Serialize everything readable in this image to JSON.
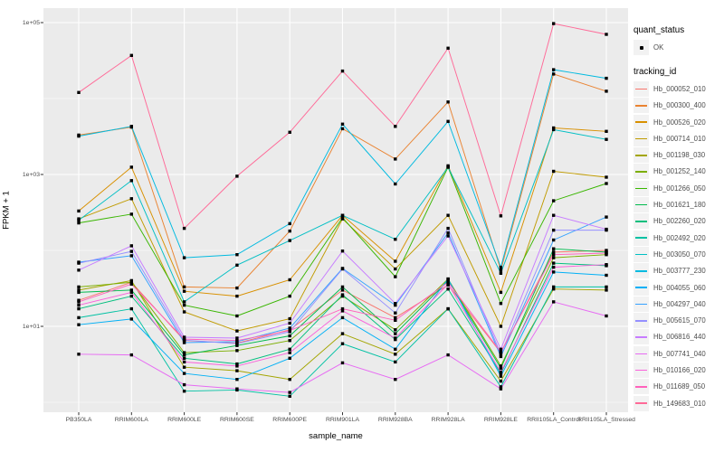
{
  "figure": {
    "panel_bg": "#EBEBEB",
    "grid_color": "#FFFFFF",
    "tick_color": "#333333",
    "point_color": "#000000",
    "y_axis_title": "FPKM + 1",
    "x_axis_title": "sample_name",
    "y_tick_labels": [
      "1e+05",
      "1e+03",
      "1e+01"
    ]
  },
  "legend": {
    "quant_status": {
      "title": "quant_status",
      "items": [
        {
          "label": "OK",
          "shape": "point"
        }
      ]
    },
    "tracking_id": {
      "title": "tracking_id"
    }
  },
  "chart_data": {
    "type": "line",
    "xlabel": "sample_name",
    "ylabel": "FPKM + 1",
    "y_scale": "log10",
    "y_major_ticks": [
      10,
      1000,
      100000
    ],
    "y_minor_ticks": [
      1,
      100,
      10000
    ],
    "grid": true,
    "legend_position": "right",
    "point_marker": "black-square",
    "categories": [
      "PB350LA",
      "RRIM600LA",
      "RRIM600LE",
      "RRIM600SE",
      "RRIM600PE",
      "RRIM901LA",
      "RRIM928BA",
      "RRIM928LA",
      "RRIM928LE",
      "RRII105LA_Control",
      "RRII105LA_Stressed"
    ],
    "series": [
      {
        "name": "Hb_000052_010",
        "color": "#F8766D",
        "values": [
          22,
          38,
          6.5,
          6.0,
          9.0,
          30,
          13,
          35,
          4.5,
          95,
          100
        ]
      },
      {
        "name": "Hb_000300_400",
        "color": "#EA8331",
        "values": [
          3300,
          4200,
          33,
          32,
          180,
          4000,
          1600,
          9000,
          55,
          21000,
          12500
        ]
      },
      {
        "name": "Hb_000526_020",
        "color": "#D89000",
        "values": [
          330,
          1250,
          29,
          25,
          41,
          290,
          72,
          1300,
          28,
          4100,
          3700
        ]
      },
      {
        "name": "Hb_000714_010",
        "color": "#C09B00",
        "values": [
          260,
          480,
          15.5,
          8.7,
          12.6,
          260,
          57,
          290,
          10,
          1100,
          920
        ]
      },
      {
        "name": "Hb_001198_030",
        "color": "#A3A500",
        "values": [
          30,
          40,
          2.9,
          2.6,
          2.0,
          8.0,
          4.3,
          17,
          1.9,
          31,
          30
        ]
      },
      {
        "name": "Hb_001252_140",
        "color": "#7CAE00",
        "values": [
          33,
          38,
          4.5,
          4.8,
          6.5,
          25,
          9.0,
          42,
          3.0,
          80,
          88
        ]
      },
      {
        "name": "Hb_001266_050",
        "color": "#39B600",
        "values": [
          230,
          300,
          19,
          13.7,
          25,
          270,
          45,
          1250,
          20,
          450,
          760
        ]
      },
      {
        "name": "Hb_001621_180",
        "color": "#00BB4E",
        "values": [
          28,
          30,
          4.2,
          5.6,
          7.5,
          33,
          8.0,
          40,
          2.8,
          105,
          95
        ]
      },
      {
        "name": "Hb_002260_020",
        "color": "#00BF7D",
        "values": [
          17,
          25,
          3.8,
          3.2,
          5.0,
          26,
          6.7,
          31,
          2.4,
          68,
          63
        ]
      },
      {
        "name": "Hb_002492_020",
        "color": "#00C1A3",
        "values": [
          13,
          17,
          1.4,
          1.45,
          1.2,
          5.9,
          3.4,
          17,
          1.6,
          33,
          33
        ]
      },
      {
        "name": "Hb_003050_070",
        "color": "#00BFC4",
        "values": [
          250,
          830,
          21,
          64,
          135,
          290,
          140,
          1250,
          50,
          3900,
          2900
        ]
      },
      {
        "name": "Hb_003777_230",
        "color": "#00BAE0",
        "values": [
          3200,
          4300,
          80,
          88,
          225,
          4600,
          750,
          5000,
          60,
          24000,
          18500
        ]
      },
      {
        "name": "Hb_004055_060",
        "color": "#00B0F6",
        "values": [
          10.5,
          12.5,
          2.4,
          2.0,
          3.8,
          13,
          5.0,
          42,
          2.2,
          52,
          47
        ]
      },
      {
        "name": "Hb_004297_040",
        "color": "#35A2FF",
        "values": [
          70,
          85,
          6.1,
          6.3,
          9.5,
          58,
          19,
          170,
          4.0,
          137,
          275
        ]
      },
      {
        "name": "Hb_005615_070",
        "color": "#9590FF",
        "values": [
          68,
          97,
          6.6,
          5.9,
          8.5,
          57,
          15,
          195,
          4.3,
          185,
          185
        ]
      },
      {
        "name": "Hb_006816_440",
        "color": "#C77CFF",
        "values": [
          55,
          115,
          7.2,
          7.0,
          11,
          98,
          20,
          155,
          5.0,
          290,
          190
        ]
      },
      {
        "name": "Hb_007741_040",
        "color": "#E76BF3",
        "values": [
          4.3,
          4.2,
          1.7,
          1.5,
          1.35,
          3.3,
          2.0,
          4.2,
          1.5,
          21,
          13.7
        ]
      },
      {
        "name": "Hb_010166_020",
        "color": "#FA62DB",
        "values": [
          19,
          28,
          3.4,
          3.0,
          4.5,
          16,
          7.0,
          36,
          2.5,
          60,
          65
        ]
      },
      {
        "name": "Hb_011689_050",
        "color": "#FF62BC",
        "values": [
          21,
          36,
          6.8,
          6.5,
          8.8,
          17,
          12,
          38,
          4.6,
          88,
          92
        ]
      },
      {
        "name": "Hb_149683_010",
        "color": "#FF6A98",
        "values": [
          12000,
          37000,
          195,
          950,
          3600,
          23000,
          4300,
          46000,
          285,
          97000,
          70000
        ]
      }
    ]
  }
}
